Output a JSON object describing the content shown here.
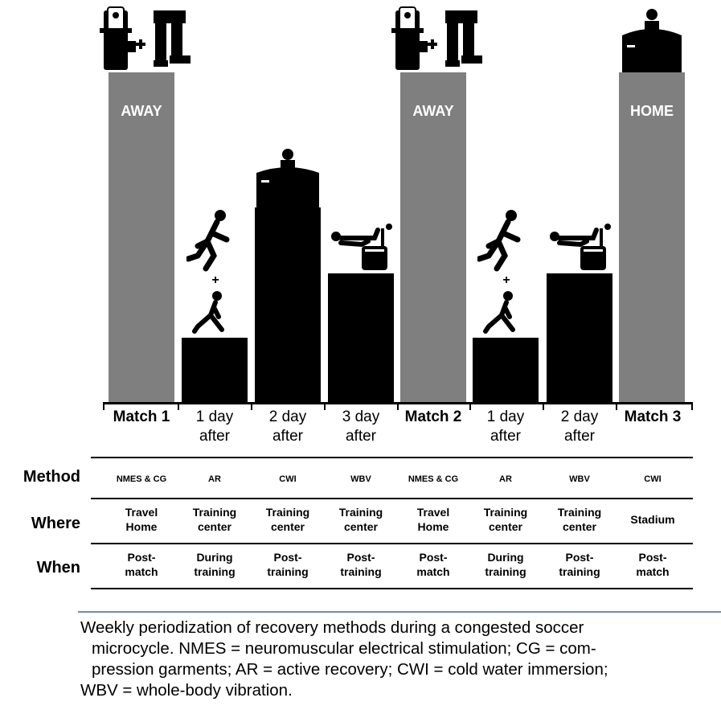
{
  "diagram": {
    "columns": [
      {
        "line1": "Match 1",
        "line2": "",
        "bold": true,
        "bar": "match",
        "bar_label": "AWAY",
        "icon": "nmes-and-compression-garments-icon",
        "method": "NMES & CG",
        "where": [
          "Travel",
          "Home"
        ],
        "when": [
          "Post-",
          "match"
        ]
      },
      {
        "line1": "1 day",
        "line2": "after",
        "bold": false,
        "bar": "black",
        "bar_label": "",
        "icon": "running-and-stretching-icon",
        "method": "AR",
        "where": [
          "Training",
          "center"
        ],
        "when": [
          "During",
          "training"
        ]
      },
      {
        "line1": "2 day",
        "line2": "after",
        "bold": false,
        "bar": "black",
        "bar_label": "",
        "icon": "cold-water-immersion-icon",
        "method": "CWI",
        "where": [
          "Training",
          "center"
        ],
        "when": [
          "Post-",
          "training"
        ]
      },
      {
        "line1": "3 day",
        "line2": "after",
        "bold": false,
        "bar": "black",
        "bar_label": "",
        "icon": "whole-body-vibration-icon",
        "method": "WBV",
        "where": [
          "Training",
          "center"
        ],
        "when": [
          "Post-",
          "training"
        ]
      },
      {
        "line1": "Match 2",
        "line2": "",
        "bold": true,
        "bar": "match",
        "bar_label": "AWAY",
        "icon": "nmes-and-compression-garments-icon",
        "method": "NMES & CG",
        "where": [
          "Travel",
          "Home"
        ],
        "when": [
          "Post-",
          "match"
        ]
      },
      {
        "line1": "1 day",
        "line2": "after",
        "bold": false,
        "bar": "black",
        "bar_label": "",
        "icon": "running-and-stretching-icon",
        "method": "AR",
        "where": [
          "Training",
          "center"
        ],
        "when": [
          "During",
          "training"
        ]
      },
      {
        "line1": "2 day",
        "line2": "after",
        "bold": false,
        "bar": "black",
        "bar_label": "",
        "icon": "whole-body-vibration-icon",
        "method": "WBV",
        "where": [
          "Training",
          "center"
        ],
        "when": [
          "Post-",
          "training"
        ]
      },
      {
        "line1": "Match 3",
        "line2": "",
        "bold": true,
        "bar": "match",
        "bar_label": "HOME",
        "icon": "cold-water-immersion-icon",
        "method": "CWI",
        "where": [
          "Stadium"
        ],
        "when": [
          "Post-",
          "match"
        ]
      }
    ],
    "row_headers": {
      "method": "Method",
      "where": "Where",
      "when": "When"
    },
    "plus_sign": "+",
    "colors": {
      "match_bar": "#7f7f7f",
      "recovery_bar": "#000000",
      "caption_rule": "#6f90aa"
    }
  },
  "caption": {
    "lines": [
      "Weekly periodization of recovery methods during a congested soccer",
      "microcycle. NMES = neuromuscular electrical stimulation; CG = com-",
      "pression garments; AR = active recovery; CWI = cold water immersion;",
      "WBV = whole-body vibration."
    ]
  }
}
